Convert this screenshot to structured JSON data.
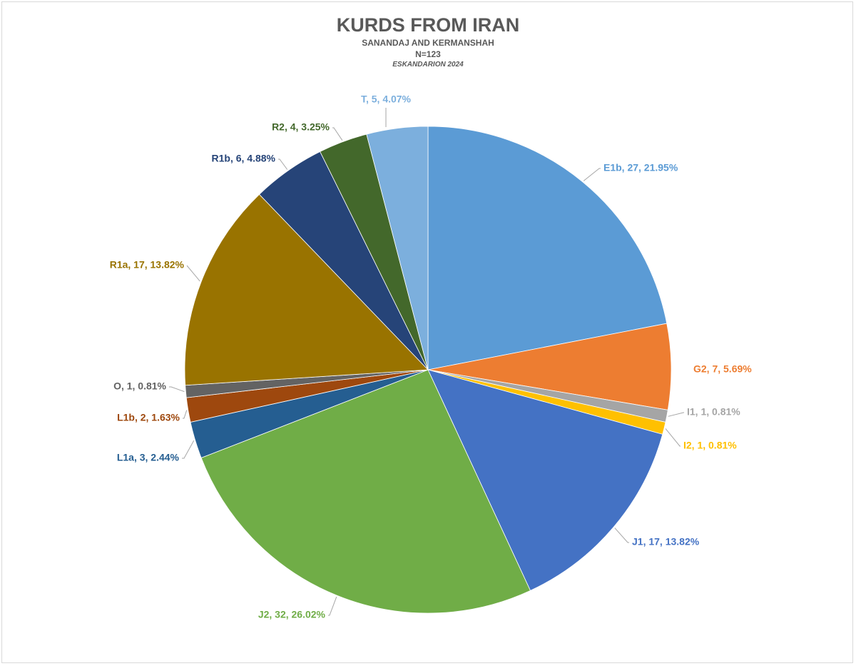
{
  "chart_data": {
    "type": "pie",
    "title": "KURDS FROM IRAN",
    "subtitle": "SANANDAJ AND KERMANSHAH",
    "subtitle2": "N=123",
    "note": "ESKANDARION 2024",
    "start_angle_deg": 0,
    "direction": "clockwise",
    "slices": [
      {
        "label": "E1b, 27, 21.95%",
        "name": "E1b",
        "value": 27,
        "percent": 21.95,
        "color": "#5b9bd5"
      },
      {
        "label": "G2, 7, 5.69%",
        "name": "G2",
        "value": 7,
        "percent": 5.69,
        "color": "#ed7d31"
      },
      {
        "label": "I1, 1, 0.81%",
        "name": "I1",
        "value": 1,
        "percent": 0.81,
        "color": "#a5a5a5"
      },
      {
        "label": "I2, 1, 0.81%",
        "name": "I2",
        "value": 1,
        "percent": 0.81,
        "color": "#ffc000"
      },
      {
        "label": "J1, 17, 13.82%",
        "name": "J1",
        "value": 17,
        "percent": 13.82,
        "color": "#4472c4"
      },
      {
        "label": "J2, 32, 26.02%",
        "name": "J2",
        "value": 32,
        "percent": 26.02,
        "color": "#70ad47"
      },
      {
        "label": "L1a, 3, 2.44%",
        "name": "L1a",
        "value": 3,
        "percent": 2.44,
        "color": "#255e91"
      },
      {
        "label": "L1b, 2, 1.63%",
        "name": "L1b",
        "value": 2,
        "percent": 1.63,
        "color": "#9e480e"
      },
      {
        "label": "O, 1, 0.81%",
        "name": "O",
        "value": 1,
        "percent": 0.81,
        "color": "#636363"
      },
      {
        "label": "R1a, 17, 13.82%",
        "name": "R1a",
        "value": 17,
        "percent": 13.82,
        "color": "#997300"
      },
      {
        "label": "R1b, 6, 4.88%",
        "name": "R1b",
        "value": 6,
        "percent": 4.88,
        "color": "#264478"
      },
      {
        "label": "R2, 4, 3.25%",
        "name": "R2",
        "value": 4,
        "percent": 3.25,
        "color": "#43682b"
      },
      {
        "label": "T, 5, 4.07%",
        "name": "T",
        "value": 5,
        "percent": 4.07,
        "color": "#7cafdd"
      }
    ]
  }
}
